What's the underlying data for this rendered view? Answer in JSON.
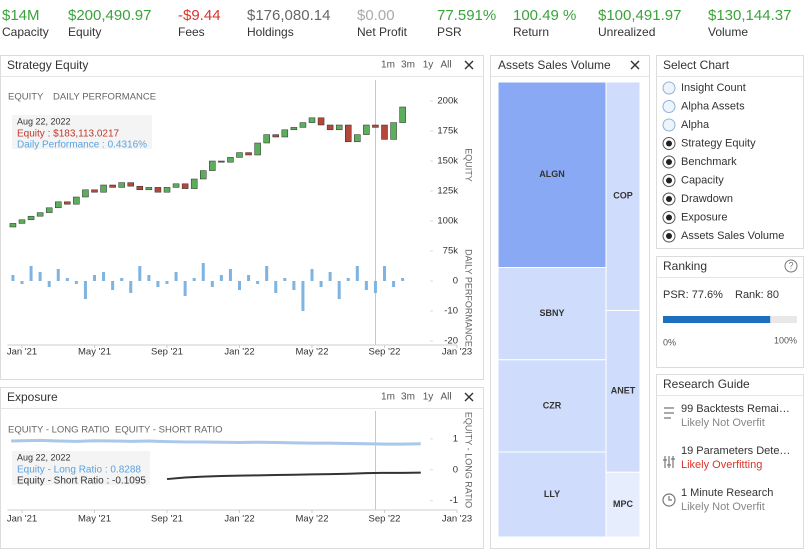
{
  "stats": [
    {
      "value": "$14M",
      "label": "Capacity",
      "color": "#3aa33a"
    },
    {
      "value": "$200,490.97",
      "label": "Equity",
      "color": "#3aa33a"
    },
    {
      "value": "-$9.44",
      "label": "Fees",
      "color": "#d9352b"
    },
    {
      "value": "$176,080.14",
      "label": "Holdings",
      "color": "#666666"
    },
    {
      "value": "$0.00",
      "label": "Net Profit",
      "color": "#aaaaaa"
    },
    {
      "value": "77.591%",
      "label": "PSR",
      "color": "#3aa33a"
    },
    {
      "value": "100.49 %",
      "label": "Return",
      "color": "#3aa33a"
    },
    {
      "value": "$100,491.97",
      "label": "Unrealized",
      "color": "#3aa33a"
    },
    {
      "value": "$130,144.37",
      "label": "Volume",
      "color": "#3aa33a"
    }
  ],
  "strategy_equity": {
    "title": "Strategy Equity",
    "ranges": [
      "1m",
      "3m",
      "1y",
      "All"
    ],
    "tabs": [
      "EQUITY",
      "DAILY PERFORMANCE"
    ],
    "tooltip": {
      "date": "Aug 22, 2022",
      "lines": [
        {
          "text": "Equity : $183,113.0217",
          "color": "#c0392b"
        },
        {
          "text": "Daily Performance : 0.4316%",
          "color": "#5ba3e0"
        }
      ]
    },
    "xlim": [
      -0.8,
      24
    ],
    "xticks": [
      {
        "value": 0,
        "label": "Jan '21"
      },
      {
        "value": 4,
        "label": "May '21"
      },
      {
        "value": 8,
        "label": "Sep '21"
      },
      {
        "value": 12,
        "label": "Jan '22"
      },
      {
        "value": 16,
        "label": "May '22"
      },
      {
        "value": 20,
        "label": "Sep '22"
      },
      {
        "value": 24,
        "label": "Jan '23"
      }
    ],
    "equity": {
      "type": "candlestick",
      "ylabel": "EQUITY",
      "up_color": "#5cad5c",
      "down_color": "#b5473a",
      "x": [
        -0.5,
        0,
        0.5,
        1,
        1.5,
        2,
        2.5,
        3,
        3.5,
        4,
        4.5,
        5,
        5.5,
        6,
        6.5,
        7,
        7.5,
        8,
        8.5,
        9,
        9.5,
        10,
        10.5,
        11,
        11.5,
        12,
        12.5,
        13,
        13.5,
        14,
        14.5,
        15,
        15.5,
        16,
        16.5,
        17,
        17.5,
        18,
        18.5,
        19,
        19.5,
        20,
        20.5,
        21
      ],
      "open": [
        95000,
        98000,
        101000,
        104000,
        107000,
        111000,
        116000,
        114000,
        120000,
        126000,
        124000,
        130000,
        128000,
        132000,
        129000,
        126000,
        128000,
        124000,
        128000,
        131000,
        127000,
        135000,
        142000,
        150000,
        149000,
        153000,
        157000,
        155000,
        165000,
        172000,
        170000,
        176000,
        178000,
        182000,
        186000,
        180000,
        176000,
        180000,
        166000,
        172000,
        180000,
        180000,
        168000,
        182000
      ],
      "close": [
        98000,
        101000,
        104000,
        107000,
        111000,
        116000,
        114000,
        120000,
        126000,
        124000,
        130000,
        128000,
        132000,
        129000,
        126000,
        128000,
        124000,
        128000,
        131000,
        127000,
        135000,
        142000,
        150000,
        149000,
        153000,
        157000,
        155000,
        165000,
        172000,
        170000,
        176000,
        178000,
        182000,
        186000,
        180000,
        176000,
        180000,
        166000,
        172000,
        180000,
        178000,
        168000,
        182000,
        195000
      ],
      "ylim": [
        75000,
        205000
      ],
      "yticks": [
        {
          "value": 75000,
          "label": "75k"
        },
        {
          "value": 100000,
          "label": "100k"
        },
        {
          "value": 125000,
          "label": "125k"
        },
        {
          "value": 150000,
          "label": "150k"
        },
        {
          "value": 175000,
          "label": "175k"
        },
        {
          "value": 200000,
          "label": "200k"
        }
      ]
    },
    "daily_performance": {
      "type": "bar",
      "ylabel": "DAILY PERFORMANCE",
      "color": "#7fb3e0",
      "values": [
        2,
        -1,
        5,
        3,
        -2,
        4,
        1,
        -1,
        -6,
        2,
        3,
        -3,
        1,
        -4,
        5,
        2,
        -2,
        -1,
        3,
        -5,
        1,
        6,
        -2,
        2,
        4,
        -3,
        2,
        -1,
        5,
        -4,
        1,
        -3,
        -10,
        4,
        -2,
        3,
        -6,
        1,
        5,
        -3,
        -4,
        5,
        -2,
        1
      ],
      "ylim": [
        -21,
        7
      ],
      "yticks": [
        0,
        -10,
        -20
      ]
    }
  },
  "exposure": {
    "title": "Exposure",
    "type": "line",
    "ranges": [
      "1m",
      "3m",
      "1y",
      "All"
    ],
    "tabs": [
      "EQUITY - LONG RATIO",
      "EQUITY - SHORT RATIO"
    ],
    "tooltip": {
      "date": "Aug 22, 2022",
      "lines": [
        {
          "text": "Equity - Long Ratio : 0.8288",
          "color": "#5ba3e0"
        },
        {
          "text": "Equity - Short Ratio : -0.1095",
          "color": "#333333"
        }
      ]
    },
    "ylabel": "EQUITY - LONG RATIO",
    "xlim": [
      -0.8,
      24
    ],
    "xticks": [
      {
        "value": 0,
        "label": "Jan '21"
      },
      {
        "value": 4,
        "label": "May '21"
      },
      {
        "value": 8,
        "label": "Sep '21"
      },
      {
        "value": 12,
        "label": "Jan '22"
      },
      {
        "value": 16,
        "label": "May '22"
      },
      {
        "value": 20,
        "label": "Sep '22"
      },
      {
        "value": 24,
        "label": "Jan '23"
      }
    ],
    "ylim": [
      -1.3,
      1.9
    ],
    "yticks": [
      1,
      0,
      -1
    ],
    "x": [
      -0.6,
      0,
      1,
      2,
      3,
      4,
      5,
      6,
      7,
      8,
      9,
      10,
      11,
      12,
      13,
      14,
      15,
      16,
      17,
      18,
      19,
      20,
      21,
      22
    ],
    "series": [
      {
        "color": "#a9c8ea",
        "values": [
          0.93,
          0.94,
          0.95,
          0.93,
          0.92,
          0.94,
          0.93,
          0.92,
          0.93,
          0.91,
          0.9,
          0.9,
          0.89,
          0.88,
          0.89,
          0.88,
          0.87,
          0.86,
          0.86,
          0.85,
          0.84,
          0.83,
          0.83,
          0.84
        ]
      },
      {
        "color": "#333333",
        "values": [
          null,
          null,
          null,
          null,
          null,
          null,
          null,
          null,
          null,
          -0.3,
          -0.25,
          -0.22,
          -0.2,
          -0.19,
          -0.18,
          -0.17,
          -0.16,
          -0.15,
          -0.14,
          -0.13,
          -0.11,
          -0.1,
          -0.1,
          -0.09
        ]
      }
    ]
  },
  "assets_sales_volume": {
    "title": "Assets Sales Volume",
    "type": "treemap",
    "columns": [
      {
        "items": [
          {
            "name": "ALGN",
            "value": 31,
            "color": "#8aa9f5"
          },
          {
            "name": "SBNY",
            "value": 15.4,
            "color": "#cfdcfb"
          },
          {
            "name": "CZR",
            "value": 15.4,
            "color": "#cfdcfb"
          },
          {
            "name": "LLY",
            "value": 14.2,
            "color": "#cfdcfb"
          }
        ]
      },
      {
        "items": [
          {
            "name": "COP",
            "value": 12,
            "color": "#cfdcfb"
          },
          {
            "name": "ANET",
            "value": 8.5,
            "color": "#cfdcfb"
          },
          {
            "name": "MPC",
            "value": 3.4,
            "color": "#e6edfc"
          }
        ]
      }
    ]
  },
  "select_chart": {
    "title": "Select Chart",
    "options": [
      {
        "label": "Insight Count",
        "checked": false
      },
      {
        "label": "Alpha Assets",
        "checked": false
      },
      {
        "label": "Alpha",
        "checked": false
      },
      {
        "label": "Strategy Equity",
        "checked": true
      },
      {
        "label": "Benchmark",
        "checked": true
      },
      {
        "label": "Capacity",
        "checked": true
      },
      {
        "label": "Drawdown",
        "checked": true
      },
      {
        "label": "Exposure",
        "checked": true
      },
      {
        "label": "Assets Sales Volume",
        "checked": true
      }
    ]
  },
  "ranking": {
    "title": "Ranking",
    "psr": "PSR: 77.6%",
    "rank": "Rank: 80",
    "progress": {
      "value": 80,
      "range": [
        0,
        100
      ],
      "min_label": "0%",
      "max_label": "100%",
      "color": "#1f6fbf"
    }
  },
  "research_guide": {
    "title": "Research Guide",
    "items": [
      {
        "title": "99 Backtests Remai…",
        "status": "Likely Not Overfit",
        "color": "#888888"
      },
      {
        "title": "19 Parameters Dete…",
        "status": "Likely Overfitting",
        "color": "#d9352b"
      },
      {
        "title": "1 Minute Research",
        "status": "Likely Not Overfit",
        "color": "#888888"
      }
    ]
  }
}
